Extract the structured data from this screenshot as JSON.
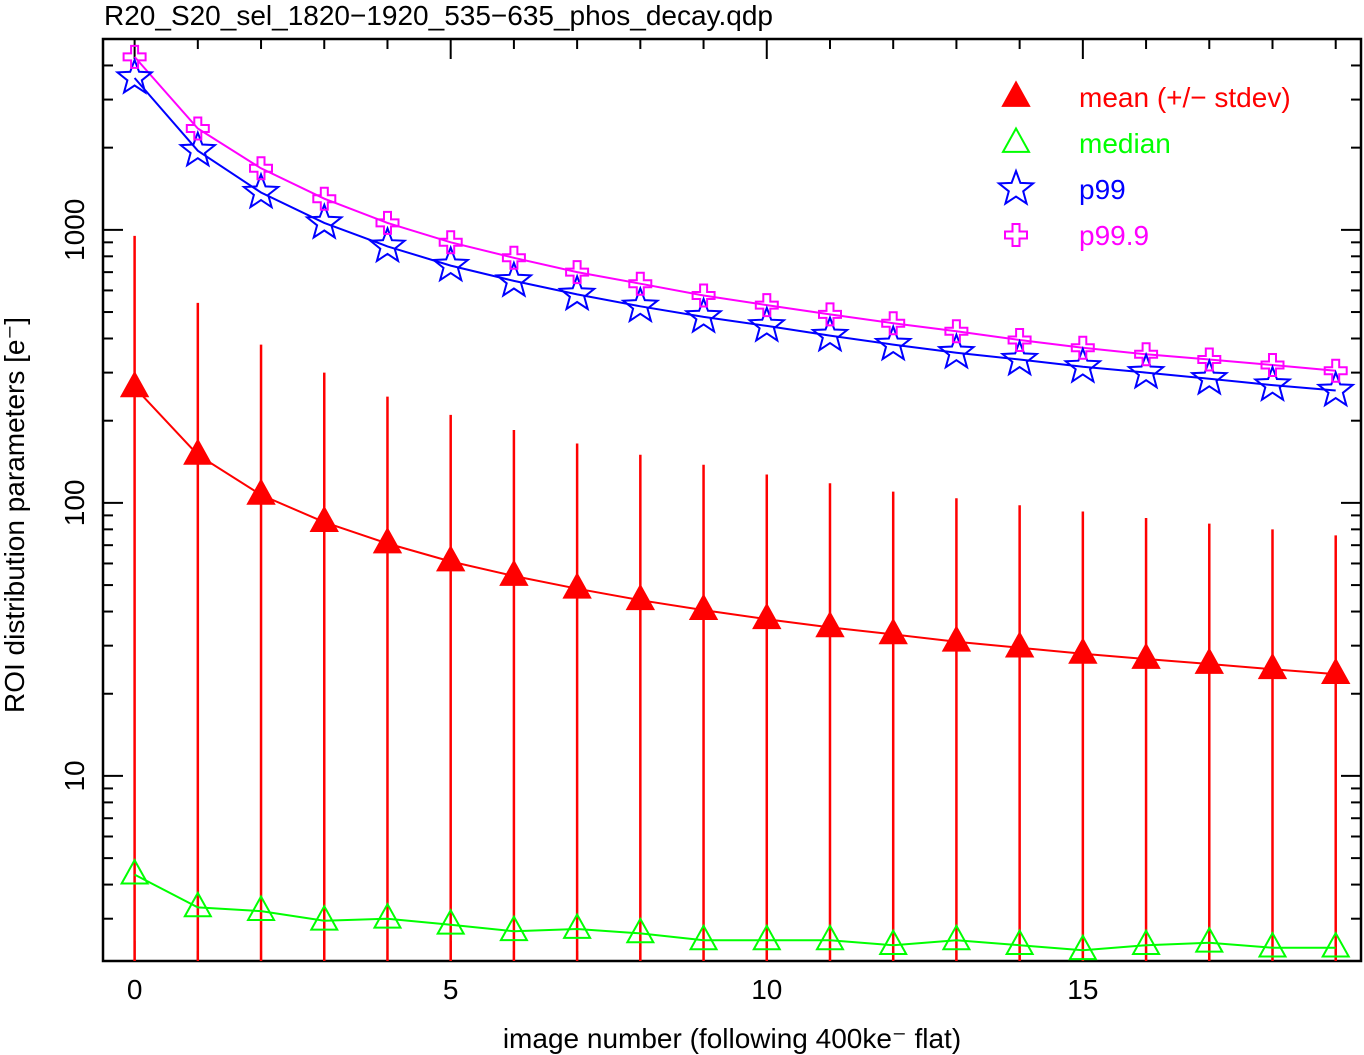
{
  "chart_data": {
    "type": "scatter",
    "title": "R20_S20_sel_1820−1920_535−635_phos_decay.qdp",
    "xlabel": "image number (following 400ke⁻ flat)",
    "ylabel": "ROI distribution parameters [e⁻]",
    "xlim": [
      -0.5,
      19.4
    ],
    "ylim": [
      2.1,
      5000
    ],
    "yscale": "log",
    "grid": false,
    "legend_position": "top-right",
    "xticks": [
      0,
      5,
      10,
      15
    ],
    "xtick_labels": [
      "0",
      "5",
      "10",
      "15"
    ],
    "yticks": [
      10,
      100,
      1000
    ],
    "ytick_labels": [
      "10",
      "100",
      "1000"
    ],
    "x": [
      0,
      1,
      2,
      3,
      4,
      5,
      6,
      7,
      8,
      9,
      10,
      11,
      12,
      13,
      14,
      15,
      16,
      17,
      18,
      19
    ],
    "series": [
      {
        "name": "mean (+/− stdev)",
        "color": "#ff0000",
        "marker": "filled-triangle",
        "values": [
          265,
          150,
          107,
          85,
          71,
          61,
          54,
          48.5,
          44,
          40.5,
          37.5,
          35,
          33,
          31,
          29.5,
          28,
          26.8,
          25.7,
          24.6,
          23.6
        ],
        "error_upper": [
          950,
          540,
          380,
          300,
          245,
          210,
          185,
          165,
          150,
          138,
          127,
          118,
          110,
          104,
          98,
          93,
          88,
          84,
          80,
          76
        ]
      },
      {
        "name": "median",
        "color": "#00ff00",
        "marker": "open-triangle",
        "values": [
          4.35,
          3.3,
          3.2,
          2.95,
          3.0,
          2.85,
          2.7,
          2.75,
          2.65,
          2.5,
          2.5,
          2.5,
          2.4,
          2.5,
          2.4,
          2.3,
          2.4,
          2.45,
          2.35,
          2.35
        ]
      },
      {
        "name": "p99",
        "color": "#0000ff",
        "marker": "open-star",
        "values": [
          3600,
          1950,
          1370,
          1060,
          870,
          740,
          650,
          580,
          525,
          480,
          445,
          410,
          380,
          355,
          335,
          315,
          300,
          285,
          270,
          258
        ]
      },
      {
        "name": "p99.9",
        "color": "#ff00ff",
        "marker": "open-cross",
        "values": [
          4300,
          2350,
          1680,
          1300,
          1060,
          900,
          790,
          700,
          635,
          575,
          530,
          490,
          455,
          425,
          395,
          370,
          350,
          335,
          320,
          305
        ]
      }
    ]
  }
}
